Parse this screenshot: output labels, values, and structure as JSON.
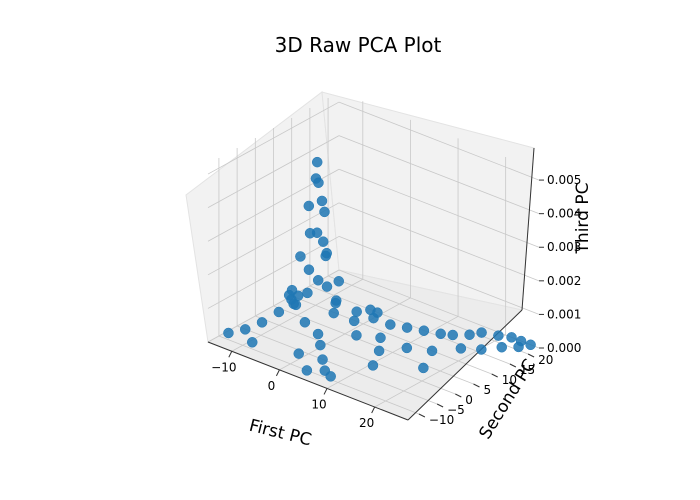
{
  "chart_data": {
    "type": "scatter",
    "projection": "3d",
    "title": "3D Raw PCA Plot",
    "xlabel": "First PC",
    "ylabel": "Second PC",
    "zlabel": "Third PC",
    "xlim": [
      -15,
      27
    ],
    "ylim": [
      -13,
      23
    ],
    "zlim": [
      0,
      0.0053
    ],
    "x_ticks": [
      "−10",
      "0",
      "10",
      "20"
    ],
    "y_ticks": [
      "−10",
      "−5",
      "0",
      "5",
      "10",
      "15",
      "20"
    ],
    "z_ticks": [
      "0.000",
      "0.001",
      "0.002",
      "0.003",
      "0.004",
      "0.005"
    ],
    "grid": true,
    "legend": "none",
    "marker_color": "#1f77b4",
    "pane_color": "#f2f2f2",
    "series": [
      {
        "points": [
          {
            "x": -2.0,
            "y": 0.0,
            "z": 0.0053
          },
          {
            "x": -1.5,
            "y": -1.0,
            "z": 0.0049
          },
          {
            "x": -2.5,
            "y": 1.0,
            "z": 0.0046
          },
          {
            "x": -1.0,
            "y": 0.0,
            "z": 0.0042
          },
          {
            "x": -3.0,
            "y": -1.0,
            "z": 0.004
          },
          {
            "x": -2.0,
            "y": 2.0,
            "z": 0.0037
          },
          {
            "x": -0.5,
            "y": -2.0,
            "z": 0.0034
          },
          {
            "x": -3.5,
            "y": 0.0,
            "z": 0.0031
          },
          {
            "x": -1.5,
            "y": 1.0,
            "z": 0.0029
          },
          {
            "x": 0.0,
            "y": 0.0,
            "z": 0.0027
          },
          {
            "x": -4.0,
            "y": -2.0,
            "z": 0.0025
          },
          {
            "x": -2.5,
            "y": 3.0,
            "z": 0.0023
          },
          {
            "x": 0.5,
            "y": -3.0,
            "z": 0.0021
          },
          {
            "x": -4.5,
            "y": 1.0,
            "z": 0.0019
          },
          {
            "x": 1.0,
            "y": 2.0,
            "z": 0.0018
          },
          {
            "x": -1.0,
            "y": -4.0,
            "z": 0.0017
          },
          {
            "x": -5.0,
            "y": -3.0,
            "z": 0.0015
          },
          {
            "x": 2.0,
            "y": 0.0,
            "z": 0.0014
          },
          {
            "x": -3.0,
            "y": 4.0,
            "z": 0.0013
          },
          {
            "x": 3.0,
            "y": -2.0,
            "z": 0.0012
          },
          {
            "x": -6.0,
            "y": 0.0,
            "z": 0.0011
          },
          {
            "x": 4.0,
            "y": 3.0,
            "z": 0.001
          },
          {
            "x": 0.0,
            "y": -6.0,
            "z": 0.001
          },
          {
            "x": 5.0,
            "y": 1.0,
            "z": 0.0009
          },
          {
            "x": -7.0,
            "y": -4.0,
            "z": 0.0008
          },
          {
            "x": 6.0,
            "y": 5.0,
            "z": 0.0008
          },
          {
            "x": 2.0,
            "y": -5.0,
            "z": 0.0007
          },
          {
            "x": 7.0,
            "y": -1.0,
            "z": 0.0007
          },
          {
            "x": -8.0,
            "y": 2.0,
            "z": 0.0006
          },
          {
            "x": 8.0,
            "y": 7.0,
            "z": 0.0006
          },
          {
            "x": 4.0,
            "y": -7.0,
            "z": 0.0006
          },
          {
            "x": 9.0,
            "y": 3.0,
            "z": 0.0005
          },
          {
            "x": -9.0,
            "y": -6.0,
            "z": 0.0005
          },
          {
            "x": 10.0,
            "y": 9.0,
            "z": 0.0005
          },
          {
            "x": 6.0,
            "y": -9.0,
            "z": 0.0004
          },
          {
            "x": 11.0,
            "y": 0.0,
            "z": 0.0004
          },
          {
            "x": -10.0,
            "y": 4.0,
            "z": 0.0004
          },
          {
            "x": 12.0,
            "y": 11.0,
            "z": 0.0004
          },
          {
            "x": 8.0,
            "y": -11.0,
            "z": 0.0003
          },
          {
            "x": 13.0,
            "y": 5.0,
            "z": 0.0003
          },
          {
            "x": 14.0,
            "y": 13.0,
            "z": 0.0003
          },
          {
            "x": 10.0,
            "y": -12.0,
            "z": 0.0003
          },
          {
            "x": 15.0,
            "y": 15.0,
            "z": 0.0002
          },
          {
            "x": 16.0,
            "y": 8.0,
            "z": 0.0002
          },
          {
            "x": 17.0,
            "y": 17.0,
            "z": 0.0002
          },
          {
            "x": 18.0,
            "y": 19.0,
            "z": 0.0002
          },
          {
            "x": 19.0,
            "y": 12.0,
            "z": 0.0002
          },
          {
            "x": 20.0,
            "y": 21.0,
            "z": 0.0001
          },
          {
            "x": 21.0,
            "y": 15.0,
            "z": 0.0001
          },
          {
            "x": 22.0,
            "y": 22.0,
            "z": 0.0001
          },
          {
            "x": 23.0,
            "y": 18.0,
            "z": 0.0001
          },
          {
            "x": 24.0,
            "y": 22.0,
            "z": 0.0001
          },
          {
            "x": 25.0,
            "y": 20.0,
            "z": 0.0001
          },
          {
            "x": 26.0,
            "y": 22.0,
            "z": 0.0001
          },
          {
            "x": -11.0,
            "y": -8.0,
            "z": 0.0003
          },
          {
            "x": -12.0,
            "y": 6.0,
            "z": 0.0003
          },
          {
            "x": -13.0,
            "y": -10.0,
            "z": 0.0002
          },
          {
            "x": -14.0,
            "y": 8.0,
            "z": 0.0002
          },
          {
            "x": 3.0,
            "y": 10.0,
            "z": 0.0005
          },
          {
            "x": 1.0,
            "y": -9.0,
            "z": 0.0003
          },
          {
            "x": -5.0,
            "y": 9.0,
            "z": 0.0004
          },
          {
            "x": 5.0,
            "y": -12.0,
            "z": 0.0002
          },
          {
            "x": 12.0,
            "y": -3.0,
            "z": 0.0002
          },
          {
            "x": 18.0,
            "y": 3.0,
            "z": 0.0001
          },
          {
            "x": -8.0,
            "y": -10.0,
            "z": 0.0002
          },
          {
            "x": 0.0,
            "y": 12.0,
            "z": 0.0003
          }
        ]
      }
    ]
  }
}
